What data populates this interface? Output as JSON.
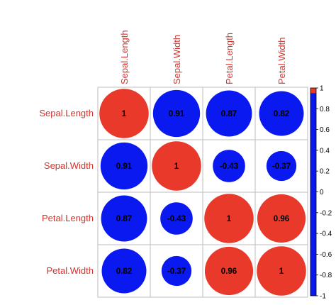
{
  "chart_data": {
    "type": "heatmap",
    "style": "corrplot-circle",
    "row_labels": [
      "Sepal.Length",
      "Sepal.Width",
      "Petal.Length",
      "Petal.Width"
    ],
    "col_labels": [
      "Sepal.Length",
      "Sepal.Width",
      "Petal.Length",
      "Petal.Width"
    ],
    "matrix": [
      [
        1,
        0.91,
        0.87,
        0.82
      ],
      [
        0.91,
        1,
        -0.43,
        -0.37
      ],
      [
        0.87,
        -0.43,
        1,
        0.96
      ],
      [
        0.82,
        -0.37,
        0.96,
        1
      ]
    ],
    "value_labels": [
      [
        "1",
        "0.91",
        "0.87",
        "0.82"
      ],
      [
        "0.91",
        "1",
        "-0.43",
        "-0.37"
      ],
      [
        "0.87",
        "-0.43",
        "1",
        "0.96"
      ],
      [
        "0.82",
        "-0.37",
        "0.96",
        "1"
      ]
    ],
    "colorbar": {
      "range": [
        -1,
        1
      ],
      "ticks": [
        "1",
        "0.8",
        "0.6",
        "0.4",
        "0.2",
        "0",
        "-0.2",
        "-0.4",
        "-0.6",
        "-0.8",
        "-1"
      ]
    },
    "colors": {
      "positive_strong": "#e8392b",
      "negative": "#0a19f0",
      "label": "#d9312a",
      "grid": "#bdbdbd"
    },
    "grid": true,
    "legend_placement": "right"
  }
}
